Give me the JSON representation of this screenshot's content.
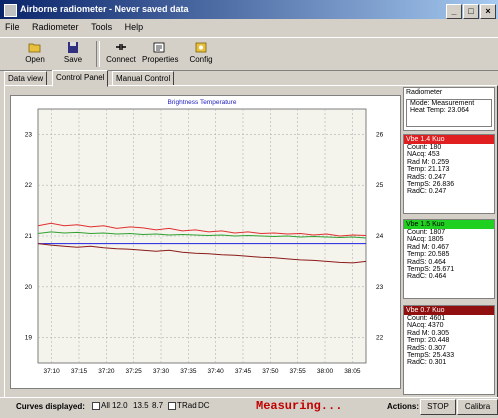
{
  "window": {
    "title": "Airborne radiometer - Never saved data",
    "controls": [
      "_",
      "□",
      "×"
    ]
  },
  "menu": [
    "File",
    "Radiometer",
    "Tools",
    "Help"
  ],
  "toolbar": [
    {
      "label": "Open",
      "icon": "folder-open-icon"
    },
    {
      "label": "Save",
      "icon": "floppy-disk-icon"
    },
    {
      "label": "Connect",
      "icon": "connect-icon"
    },
    {
      "label": "Properties",
      "icon": "properties-icon"
    },
    {
      "label": "Config",
      "icon": "config-icon"
    }
  ],
  "tabs": [
    "Data view",
    "Control Panel",
    "Manual Control"
  ],
  "active_tab": "Control Panel",
  "chart_data": {
    "type": "line",
    "title": "Brightness Temperature",
    "x_ticks": [
      "37:10",
      "37:15",
      "37:20",
      "37:25",
      "37:30",
      "37:35",
      "37:40",
      "37:45",
      "37:50",
      "37:55",
      "38:00",
      "38:05"
    ],
    "left_ticks": [
      "23",
      "22",
      "21",
      "20",
      "19"
    ],
    "right_ticks": [
      "26",
      "25",
      "24",
      "23",
      "22"
    ],
    "ylim_left": [
      18.5,
      23.5
    ],
    "ylim_right": [
      21.5,
      26.5
    ],
    "grid": true,
    "series": [
      {
        "axis": "left",
        "color": "#e03030",
        "values": [
          21.2,
          21.25,
          21.2,
          21.22,
          21.18,
          21.2,
          21.15,
          21.18,
          21.16,
          21.12,
          21.15,
          21.1,
          21.12,
          21.08,
          21.1,
          21.06,
          21.08,
          21.05,
          21.06,
          21.04,
          21.05,
          21.02,
          21.04,
          21.0,
          21.02,
          21.01
        ]
      },
      {
        "axis": "left",
        "color": "#30a030",
        "values": [
          21.05,
          21.08,
          21.06,
          21.07,
          21.05,
          21.06,
          21.04,
          21.05,
          21.03,
          21.04,
          21.02,
          21.03,
          21.02,
          21.01,
          21.02,
          21.0,
          21.01,
          21.0,
          20.99,
          21.0,
          20.98,
          20.99,
          20.98,
          20.97,
          20.98,
          20.96
        ]
      },
      {
        "axis": "left",
        "color": "#2020e0",
        "values": [
          20.85,
          20.85,
          20.85,
          20.85,
          20.85,
          20.85,
          20.85,
          20.85,
          20.85,
          20.85,
          20.85,
          20.85,
          20.85,
          20.85,
          20.85,
          20.85,
          20.85,
          20.85,
          20.85,
          20.85,
          20.85,
          20.85,
          20.85,
          20.85,
          20.85,
          20.85
        ]
      },
      {
        "axis": "left",
        "color": "#8b1a1a",
        "values": [
          20.85,
          20.82,
          20.8,
          20.78,
          20.8,
          20.77,
          20.75,
          20.74,
          20.72,
          20.7,
          20.72,
          20.68,
          20.66,
          20.65,
          20.63,
          20.62,
          20.6,
          20.58,
          20.57,
          20.55,
          20.53,
          20.52,
          20.5,
          20.48,
          20.47,
          20.5
        ]
      }
    ]
  },
  "radiometer": {
    "title": "Radiometer",
    "lines": [
      "Mode: Measurement",
      "Heat Temp: 23.064"
    ]
  },
  "channels": [
    {
      "name": "Vbe 1.4 Kuo",
      "color": "#e02020",
      "lines": [
        "Count: 180",
        "NAcq: 453",
        "Rad M: 0.259",
        "Temp: 21.173",
        "RadS: 0.247",
        "TempS: 26.836",
        "RadC: 0.247"
      ]
    },
    {
      "name": "Vbe 1.5 Kuo",
      "color": "#20d020",
      "lines": [
        "Count: 1807",
        "NAcq: 1805",
        "Rad M: 0.467",
        "Temp: 20.585",
        "RadS: 0.464",
        "TempS: 25.671",
        "RadC: 0.464"
      ]
    },
    {
      "name": "Vbe 0.7 Kuo",
      "color": "#901010",
      "lines": [
        "Count: 4601",
        "NAcq: 4370",
        "Rad M: 0.305",
        "Temp: 20.448",
        "RadS: 0.307",
        "TempS: 25.433",
        "RadC: 0.301"
      ]
    }
  ],
  "status": {
    "curves_label": "Curves displayed:",
    "curve_options": [
      "All",
      "12.0",
      "13.5",
      "8.7",
      "T",
      "Rad",
      "DC"
    ],
    "measuring": "Measuring...",
    "actions_label": "Actions:",
    "stop_label": "STOP",
    "calibrate_label": "Calibra"
  }
}
